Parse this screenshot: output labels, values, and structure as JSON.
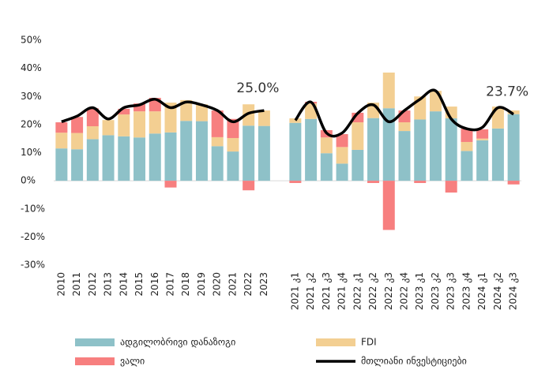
{
  "chart_data": {
    "type": "bar",
    "stacked": true,
    "categories": [
      "2010",
      "2011",
      "2012",
      "2013",
      "2014",
      "2015",
      "2016",
      "2017",
      "2018",
      "2019",
      "2020",
      "2021",
      "2022",
      "2023",
      null,
      "2021 კ1",
      "2021 კ2",
      "2021 კ3",
      "2021 კ4",
      "2022 კ1",
      "2022 კ2",
      "2022 კ3",
      "2022 კ4",
      "2023 კ1",
      "2023 კ2",
      "2023 კ3",
      "2023 კ4",
      "2024 კ1",
      "2024 კ2",
      "2024 კ3"
    ],
    "series": [
      {
        "name": "ადგილობრივი დანაზოგი",
        "color": "#8ec1c8",
        "values": [
          11.5,
          11.2,
          14.8,
          16.2,
          15.8,
          15.4,
          16.8,
          17.2,
          21.3,
          21.2,
          12.3,
          10.4,
          19.6,
          19.5,
          null,
          20.6,
          22,
          9.8,
          6.1,
          11,
          22.3,
          25.8,
          17.7,
          21.8,
          24.7,
          22.2,
          10.6,
          14.4,
          18.6,
          23.7
        ]
      },
      {
        "name": "FDI",
        "color": "#f3cf92",
        "values": [
          5.6,
          5.8,
          4.6,
          5.4,
          7.8,
          9.3,
          7.9,
          10.6,
          7.4,
          6,
          3.2,
          4.8,
          7.6,
          5.5,
          null,
          1.6,
          5.5,
          5.6,
          5.9,
          9.8,
          5.5,
          12.7,
          3.1,
          8.2,
          7.3,
          4.2,
          3.2,
          0.6,
          7.8,
          1.3
        ]
      },
      {
        "name": "ვალი",
        "color": "#f77f7f",
        "values": [
          3.7,
          5.7,
          6.4,
          0,
          2,
          2.8,
          4.8,
          -2.4,
          0,
          0,
          9.5,
          6.8,
          -3.4,
          0,
          null,
          -0.8,
          0.6,
          2.6,
          4.6,
          3.4,
          -0.8,
          -17.5,
          4.2,
          -0.8,
          0,
          -4.2,
          4.7,
          3.3,
          0,
          -1.3
        ]
      },
      {
        "name": "მთლიანი ინვესტიციები",
        "color": "#000000",
        "type": "line",
        "values": [
          21,
          23,
          26,
          22,
          26,
          27,
          29,
          26,
          28,
          27,
          25,
          21,
          24,
          25.0,
          null,
          21.5,
          28,
          17,
          17,
          24,
          27,
          21,
          25,
          29,
          32,
          22,
          18.5,
          19,
          26,
          23.7
        ],
        "value_labels": [
          null,
          null,
          null,
          null,
          null,
          null,
          null,
          null,
          null,
          null,
          null,
          null,
          null,
          "25.0%",
          null,
          null,
          null,
          null,
          null,
          null,
          null,
          null,
          null,
          null,
          null,
          null,
          null,
          null,
          null,
          "23.7%"
        ]
      }
    ],
    "ylim": [
      -30,
      50
    ],
    "yticks": [
      {
        "value": -30,
        "label": "-30%"
      },
      {
        "value": -20,
        "label": "-20%"
      },
      {
        "value": -10,
        "label": "-10%"
      },
      {
        "value": 0,
        "label": "0%"
      },
      {
        "value": 10,
        "label": "10%"
      },
      {
        "value": 20,
        "label": "20%"
      },
      {
        "value": 30,
        "label": "30%"
      },
      {
        "value": 40,
        "label": "40%"
      },
      {
        "value": 50,
        "label": "50%"
      }
    ],
    "legend": "bottom"
  }
}
